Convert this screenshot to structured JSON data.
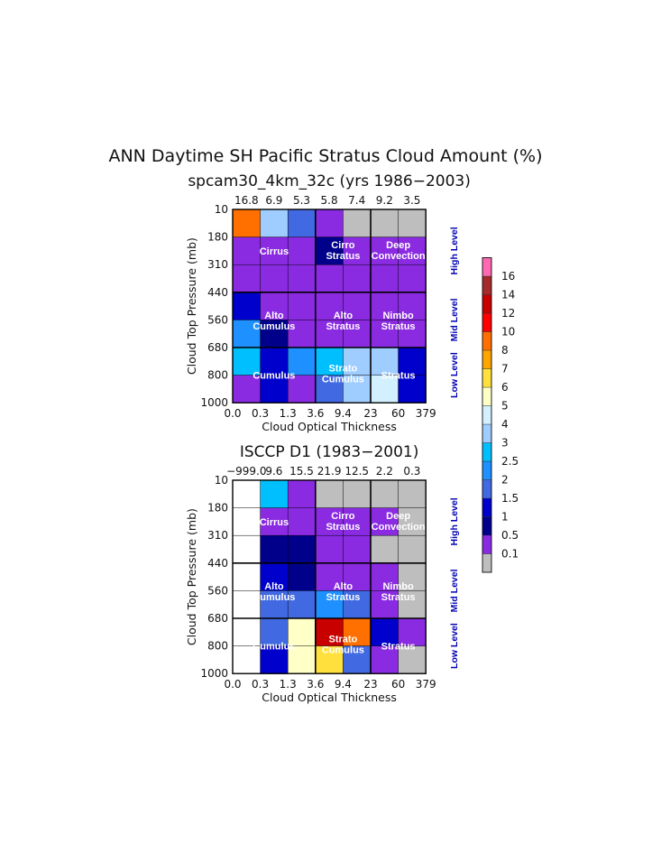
{
  "chart_data": {
    "type": "heatmap",
    "title": "ANN Daytime SH Pacific Stratus Cloud Amount (%)",
    "x_tick_labels": [
      "0.0",
      "0.3",
      "1.3",
      "3.6",
      "9.4",
      "23",
      "60",
      "379"
    ],
    "y_tick_labels": [
      "10",
      "180",
      "310",
      "440",
      "560",
      "680",
      "800",
      "1000"
    ],
    "xlabel": "Cloud Optical Thickness",
    "ylabel": "Cloud Top Pressure (mb)",
    "cloud_types": {
      "cirrus": "Cirrus",
      "cirrostratus": [
        "Cirro",
        "Stratus"
      ],
      "deep_convection": [
        "Deep",
        "Convection"
      ],
      "altocumulus": [
        "Alto",
        "Cumulus"
      ],
      "altostratus": [
        "Alto",
        "Stratus"
      ],
      "nimbostratus": [
        "Nimbo",
        "Stratus"
      ],
      "cumulus": "Cumulus",
      "stratocumulus": [
        "Strato",
        "Cumulus"
      ],
      "stratus": "Stratus"
    },
    "levels": [
      "High Level",
      "Mid Level",
      "Low Level"
    ],
    "colorbar": {
      "labels": [
        "0.1",
        "0.5",
        "1",
        "1.5",
        "2",
        "2.5",
        "3",
        "4",
        "5",
        "6",
        "7",
        "8",
        "10",
        "12",
        "14",
        "16"
      ],
      "colors": [
        "#bebebe",
        "#8a2be2",
        "#00008b",
        "#0000cd",
        "#4169e1",
        "#1e90ff",
        "#00bfff",
        "#a0cdff",
        "#d2f0ff",
        "#ffffc8",
        "#ffe03c",
        "#ffa500",
        "#ff7000",
        "#ff0000",
        "#c80000",
        "#a52a2a",
        "#ff69b4"
      ]
    },
    "panels": [
      {
        "subtitle": "spcam30_4km_32c (yrs 1986−2003)",
        "column_totals": [
          "16.8",
          "6.9",
          "5.3",
          "5.8",
          "7.4",
          "9.2",
          "3.5"
        ],
        "rows_top_to_bottom": [
          [
            "#ff7000",
            "#a0cdff",
            "#4169e1",
            "#8a2be2",
            "#bebebe",
            "#bebebe",
            "#bebebe"
          ],
          [
            "#8a2be2",
            "#8a2be2",
            "#8a2be2",
            "#00008b",
            "#8a2be2",
            "#8a2be2",
            "#8a2be2"
          ],
          [
            "#8a2be2",
            "#8a2be2",
            "#8a2be2",
            "#8a2be2",
            "#8a2be2",
            "#8a2be2",
            "#8a2be2"
          ],
          [
            "#0000cd",
            "#8a2be2",
            "#8a2be2",
            "#8a2be2",
            "#8a2be2",
            "#8a2be2",
            "#8a2be2"
          ],
          [
            "#1e90ff",
            "#00008b",
            "#8a2be2",
            "#8a2be2",
            "#8a2be2",
            "#8a2be2",
            "#8a2be2"
          ],
          [
            "#00bfff",
            "#0000cd",
            "#1e90ff",
            "#00bfff",
            "#a0cdff",
            "#a0cdff",
            "#0000cd"
          ],
          [
            "#8a2be2",
            "#0000cd",
            "#8a2be2",
            "#4169e1",
            "#a0cdff",
            "#d2f0ff",
            "#0000cd"
          ]
        ]
      },
      {
        "subtitle": "ISCCP D1 (1983−2001)",
        "column_totals": [
          "−999.0",
          "9.6",
          "15.5",
          "21.9",
          "12.5",
          "2.2",
          "0.3"
        ],
        "rows_top_to_bottom": [
          [
            "#ffffff",
            "#00bfff",
            "#8a2be2",
            "#bebebe",
            "#bebebe",
            "#bebebe",
            "#bebebe"
          ],
          [
            "#ffffff",
            "#8a2be2",
            "#8a2be2",
            "#8a2be2",
            "#8a2be2",
            "#8a2be2",
            "#bebebe"
          ],
          [
            "#ffffff",
            "#00008b",
            "#00008b",
            "#8a2be2",
            "#8a2be2",
            "#bebebe",
            "#bebebe"
          ],
          [
            "#ffffff",
            "#0000cd",
            "#00008b",
            "#8a2be2",
            "#8a2be2",
            "#8a2be2",
            "#bebebe"
          ],
          [
            "#ffffff",
            "#4169e1",
            "#4169e1",
            "#1e90ff",
            "#4169e1",
            "#8a2be2",
            "#bebebe"
          ],
          [
            "#ffffff",
            "#4169e1",
            "#ffffc8",
            "#c80000",
            "#ff7000",
            "#0000cd",
            "#8a2be2"
          ],
          [
            "#ffffff",
            "#0000cd",
            "#ffffc8",
            "#ffe03c",
            "#4169e1",
            "#8a2be2",
            "#bebebe"
          ]
        ]
      }
    ]
  }
}
